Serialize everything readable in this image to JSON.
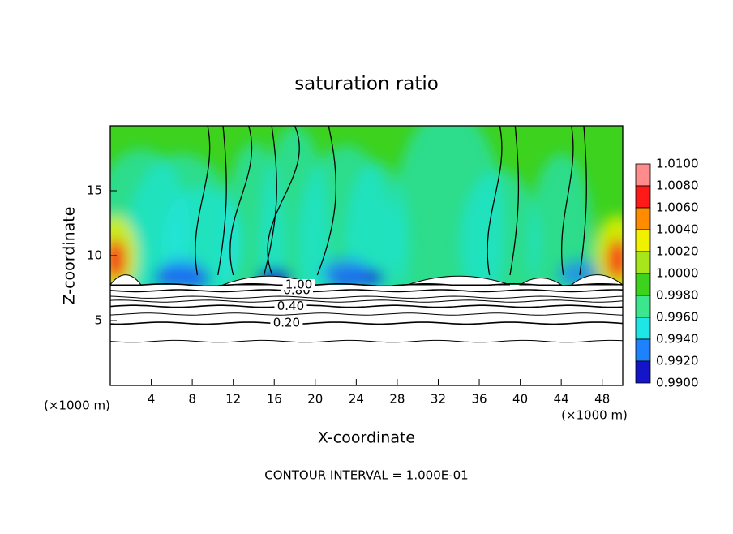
{
  "chart_data": {
    "type": "contour",
    "title": "saturation ratio",
    "x_label": "X-coordinate",
    "y_label": "Z-coordinate",
    "x_unit": "(×1000 m)",
    "footer": "CONTOUR INTERVAL = 1.000E-01",
    "xlim": [
      0,
      50
    ],
    "ylim": [
      0,
      20
    ],
    "xticks": [
      4,
      8,
      12,
      16,
      20,
      24,
      28,
      32,
      36,
      40,
      44,
      48
    ],
    "yticks": [
      5,
      10,
      15
    ],
    "contours": [
      {
        "level": 0.1,
        "z": 3.4
      },
      {
        "level": 0.2,
        "label": "0.20",
        "z": 4.8
      },
      {
        "level": 0.3,
        "z": 5.5
      },
      {
        "level": 0.4,
        "label": "0.40",
        "z": 6.1
      },
      {
        "level": 0.5,
        "z": 6.5
      },
      {
        "level": 0.6,
        "z": 6.8
      },
      {
        "level": 0.8,
        "label": "0.80",
        "z": 7.3
      },
      {
        "level": 1.0,
        "label": "1.00",
        "z": 7.75
      }
    ],
    "colorbar": {
      "ticks": [
        {
          "value": 1.01,
          "label": "1.0100"
        },
        {
          "value": 1.008,
          "label": "1.0080"
        },
        {
          "value": 1.006,
          "label": "1.0060"
        },
        {
          "value": 1.004,
          "label": "1.0040"
        },
        {
          "value": 1.002,
          "label": "1.0020"
        },
        {
          "value": 1.0,
          "label": "1.0000"
        },
        {
          "value": 0.998,
          "label": "0.9980"
        },
        {
          "value": 0.996,
          "label": "0.9960"
        },
        {
          "value": 0.994,
          "label": "0.9940"
        },
        {
          "value": 0.992,
          "label": "0.9920"
        },
        {
          "value": 0.99,
          "label": "0.9900"
        }
      ],
      "colors": [
        "#ff8c8c",
        "#ff1a1a",
        "#ff8c00",
        "#f0f000",
        "#a6e61a",
        "#3cd21e",
        "#3ce68c",
        "#1ee6e6",
        "#1e82ff",
        "#1414c8",
        "#7800a0"
      ]
    }
  }
}
